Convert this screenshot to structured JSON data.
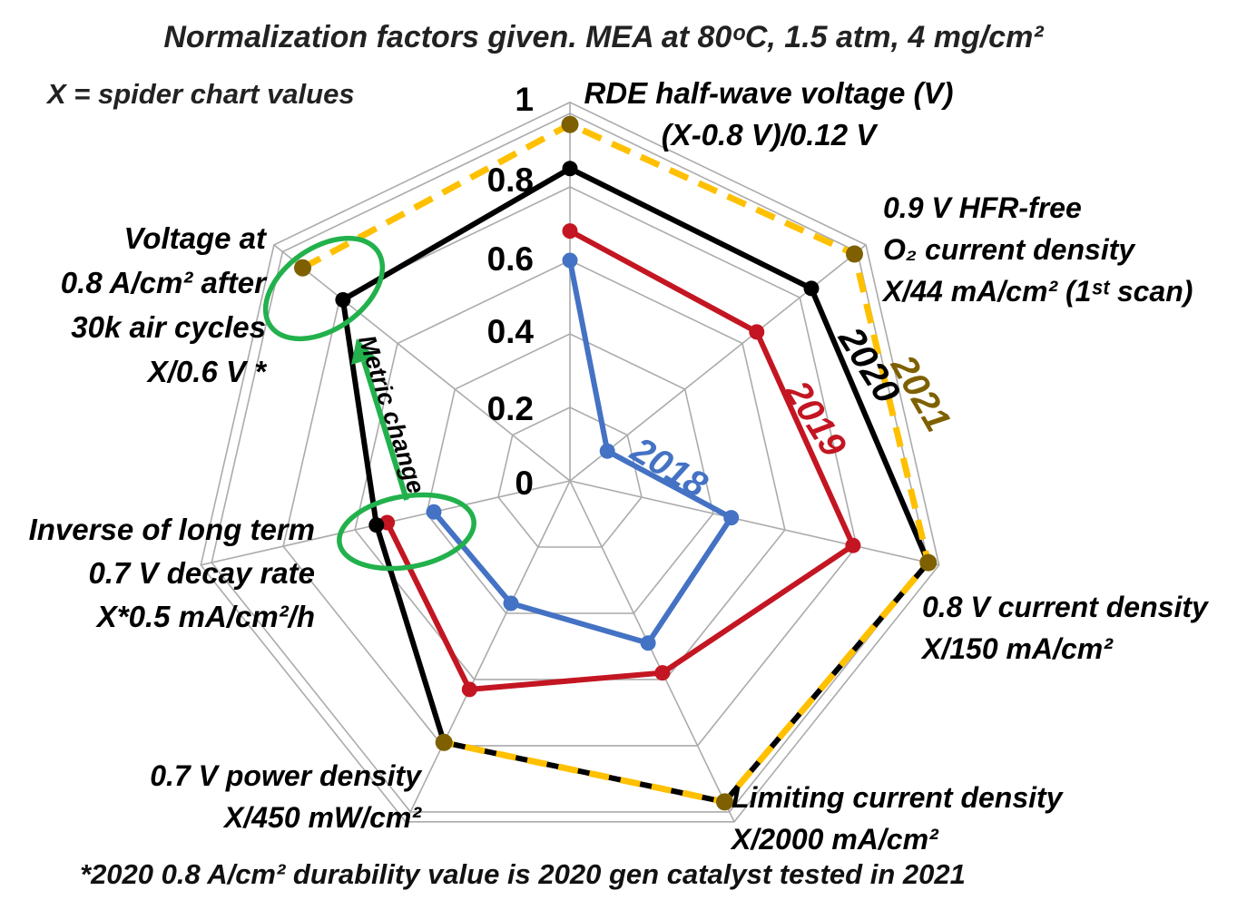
{
  "title": "Normalization factors given. MEA at 80ᵒC, 1.5 atm, 4 mg/cm²",
  "subtitle": "X = spider chart values",
  "footnote": "*2020 0.8 A/cm² durability value is 2020 gen catalyst tested in 2021",
  "colors": {
    "grid": "#ABABAB",
    "annotation_green": "#22B14C",
    "series_2018": "#4472C4",
    "series_2019": "#C31622",
    "series_2020": "#000000",
    "series_2021": "#FFC000",
    "series_2021_marker": "#7E6000"
  },
  "chart_data": {
    "type": "radar",
    "axes_count": 7,
    "value_range": [
      0,
      1
    ],
    "ring_step": 0.2,
    "grid": "on",
    "ring_labels": [
      "0",
      "0.2",
      "0.4",
      "0.6",
      "0.8",
      "1"
    ],
    "axes": [
      {
        "id": "rde-half-wave-voltage",
        "lines": [
          "RDE half-wave voltage (V)",
          "(X-0.8 V)/0.12 V"
        ]
      },
      {
        "id": "o2-current-density-0p9v",
        "lines": [
          "0.9 V HFR-free",
          "O₂ current density",
          "X/44 mA/cm² (1ˢᵗ scan)"
        ]
      },
      {
        "id": "current-density-0p8v",
        "lines": [
          "0.8 V current density",
          "X/150 mA/cm²"
        ]
      },
      {
        "id": "limiting-current-density",
        "lines": [
          "Limiting current density",
          "X/2000 mA/cm²"
        ]
      },
      {
        "id": "power-density-0p7v",
        "lines": [
          "0.7 V power density",
          "X/450 mW/cm²"
        ]
      },
      {
        "id": "decay-rate-inverse",
        "lines": [
          "Inverse of long term",
          "0.7 V decay rate",
          "X*0.5 mA/cm²/h"
        ]
      },
      {
        "id": "voltage-after-30k-cycles",
        "lines": [
          "Voltage at",
          "0.8 A/cm² after",
          "30k air cycles",
          "X/0.6 V *"
        ]
      }
    ],
    "series": [
      {
        "name": "2018",
        "color_key": "series_2018",
        "dash": null,
        "values": [
          0.6,
          0.13,
          0.45,
          0.49,
          0.37,
          0.38,
          null
        ]
      },
      {
        "name": "2019",
        "color_key": "series_2019",
        "dash": null,
        "values": [
          0.68,
          0.65,
          0.79,
          0.58,
          0.63,
          0.51,
          null
        ]
      },
      {
        "name": "2020",
        "color_key": "series_2020",
        "dash": null,
        "values": [
          0.85,
          0.84,
          1.0,
          0.97,
          0.79,
          0.54,
          0.79
        ]
      },
      {
        "name": "2021",
        "color_key": "series_2021",
        "dash": "22 13",
        "marker_color_key": "series_2021_marker",
        "values": [
          0.97,
          0.99,
          1.0,
          0.97,
          0.79,
          null,
          0.93
        ]
      }
    ],
    "annotation": {
      "label": "Metric change"
    }
  }
}
